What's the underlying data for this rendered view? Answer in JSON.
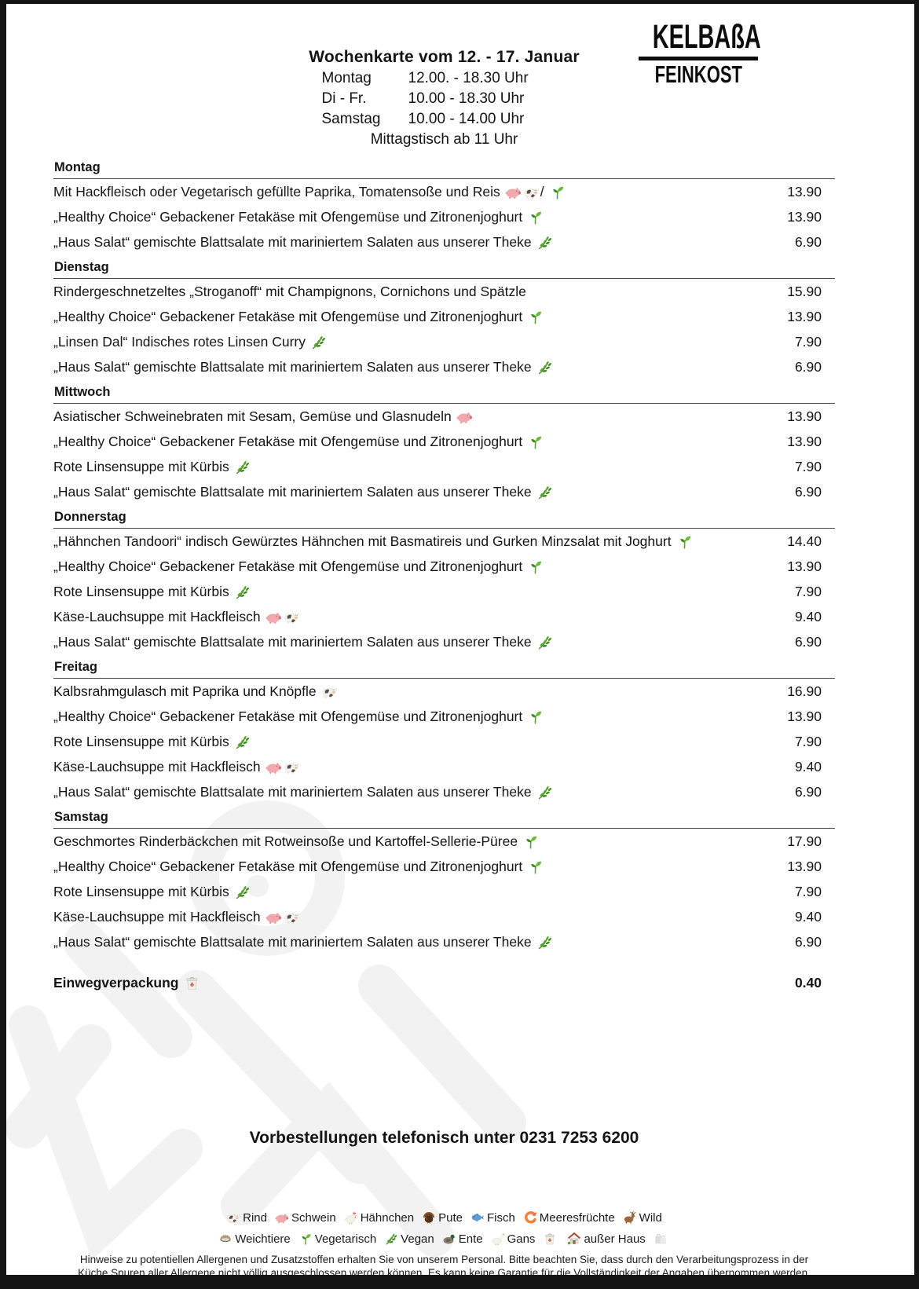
{
  "colors": {
    "page_bg": "#ffffff",
    "frame": "#151515",
    "day_rule": "#474747",
    "watermark": "#f2f2f2",
    "logo_ink": "#0d0d0d"
  },
  "page": {
    "header": {
      "title": "Wochenkarte vom  12. - 17. Januar",
      "hours": [
        {
          "label": "Montag",
          "time": "12.00. - 18.30 Uhr"
        },
        {
          "label": "Di - Fr.",
          "time": "10.00 - 18.30 Uhr"
        },
        {
          "label": "Samstag",
          "time": "10.00 - 14.00 Uhr"
        }
      ],
      "lunch_note": "Mittagstisch ab 11 Uhr",
      "logo": {
        "line1": "KELBAßA",
        "line2": "FEINKOST"
      }
    },
    "days": [
      {
        "name": "Montag",
        "items": [
          {
            "text": "Mit Hackfleisch oder Vegetarisch gefüllte Paprika, Tomatensoße und Reis",
            "icons": [
              "pig",
              "cow",
              "slash",
              "seedling"
            ],
            "price": "13.90"
          },
          {
            "text": "„Healthy Choice“  Gebackener Fetakäse mit Ofengemüse und Zitronenjoghurt",
            "icons": [
              "seedling"
            ],
            "price": "13.90"
          },
          {
            "text": "„Haus Salat“ gemischte Blattsalate mit mariniertem Salaten aus unserer Theke",
            "icons": [
              "herb"
            ],
            "price": "6.90"
          }
        ]
      },
      {
        "name": "Dienstag",
        "items": [
          {
            "text": "Rindergeschnetzeltes „Stroganoff“ mit Champignons, Cornichons und Spätzle",
            "icons": [],
            "price": "15.90"
          },
          {
            "text": "„Healthy Choice“  Gebackener Fetakäse mit Ofengemüse und Zitronenjoghurt",
            "icons": [
              "seedling"
            ],
            "price": "13.90"
          },
          {
            "text": "„Linsen Dal“ Indisches rotes Linsen Curry",
            "icons": [
              "herb"
            ],
            "price": "7.90"
          },
          {
            "text": "„Haus Salat“ gemischte Blattsalate mit mariniertem Salaten aus unserer Theke",
            "icons": [
              "herb"
            ],
            "price": "6.90"
          }
        ]
      },
      {
        "name": "Mittwoch",
        "items": [
          {
            "text": "Asiatischer Schweinebraten mit Sesam,  Gemüse und Glasnudeln",
            "icons": [
              "pig"
            ],
            "price": "13.90"
          },
          {
            "text": "„Healthy Choice“  Gebackener Fetakäse mit Ofengemüse und Zitronenjoghurt",
            "icons": [
              "seedling"
            ],
            "price": "13.90"
          },
          {
            "text": "Rote Linsensuppe mit Kürbis",
            "icons": [
              "herb"
            ],
            "price": "7.90"
          },
          {
            "text": "„Haus Salat“ gemischte Blattsalate mit mariniertem Salaten aus unserer Theke",
            "icons": [
              "herb"
            ],
            "price": "6.90"
          }
        ]
      },
      {
        "name": "Donnerstag",
        "items": [
          {
            "text": "„Hähnchen Tandoori“ indisch Gewürztes Hähnchen mit Basmatireis und Gurken Minzsalat mit Joghurt",
            "icons": [
              "seedling"
            ],
            "price": "14.40"
          },
          {
            "text": "„Healthy Choice“  Gebackener Fetakäse mit Ofengemüse und Zitronenjoghurt",
            "icons": [
              "seedling"
            ],
            "price": "13.90"
          },
          {
            "text": "Rote Linsensuppe mit Kürbis",
            "icons": [
              "herb"
            ],
            "price": "7.90"
          },
          {
            "text": "Käse-Lauchsuppe mit Hackfleisch",
            "icons": [
              "pig",
              "cow"
            ],
            "price": "9.40"
          },
          {
            "text": "„Haus Salat“ gemischte Blattsalate mit mariniertem Salaten aus unserer Theke",
            "icons": [
              "herb"
            ],
            "price": "6.90"
          }
        ]
      },
      {
        "name": "Freitag",
        "items": [
          {
            "text": "Kalbsrahmgulasch mit Paprika und Knöpfle",
            "icons": [
              "cow"
            ],
            "price": "16.90"
          },
          {
            "text": "„Healthy Choice“  Gebackener Fetakäse mit Ofengemüse und Zitronenjoghurt",
            "icons": [
              "seedling"
            ],
            "price": "13.90"
          },
          {
            "text": "Rote Linsensuppe mit Kürbis",
            "icons": [
              "herb"
            ],
            "price": "7.90"
          },
          {
            "text": "Käse-Lauchsuppe mit Hackfleisch",
            "icons": [
              "pig",
              "cow"
            ],
            "price": "9.40"
          },
          {
            "text": "„Haus Salat“ gemischte Blattsalate mit mariniertem Salaten aus unserer Theke",
            "icons": [
              "herb"
            ],
            "price": "6.90"
          }
        ]
      },
      {
        "name": "Samstag",
        "items": [
          {
            "text": "Geschmortes Rinderbäckchen mit Rotweinsoße und Kartoffel-Sellerie-Püree",
            "icons": [
              "seedling"
            ],
            "price": "17.90"
          },
          {
            "text": "„Healthy Choice“  Gebackener Fetakäse mit Ofengemüse und Zitronenjoghurt",
            "icons": [
              "seedling"
            ],
            "price": "13.90"
          },
          {
            "text": "Rote Linsensuppe mit Kürbis",
            "icons": [
              "herb"
            ],
            "price": "7.90"
          },
          {
            "text": "Käse-Lauchsuppe mit Hackfleisch",
            "icons": [
              "pig",
              "cow"
            ],
            "price": "9.40"
          },
          {
            "text": "„Haus Salat“ gemischte Blattsalate mit mariniertem Salaten aus unserer Theke",
            "icons": [
              "herb"
            ],
            "price": "6.90"
          }
        ]
      }
    ],
    "extra_item": {
      "text": "Einwegverpackung",
      "icons": [
        "takeout-box"
      ],
      "price": "0.40"
    },
    "phone_line": "Vorbestellungen telefonisch unter 0231 7253 6200",
    "legend": {
      "line1": [
        {
          "icons": [
            "cow"
          ],
          "label": "Rind"
        },
        {
          "icons": [
            "pig"
          ],
          "label": "Schwein"
        },
        {
          "icons": [
            "chicken"
          ],
          "label": "Hähnchen"
        },
        {
          "icons": [
            "turkey"
          ],
          "label": "Pute"
        },
        {
          "icons": [
            "fish"
          ],
          "label": "Fisch"
        },
        {
          "icons": [
            "shrimp"
          ],
          "label": "Meeresfrüchte"
        },
        {
          "icons": [
            "deer"
          ],
          "label": "Wild"
        }
      ],
      "line2": [
        {
          "icons": [
            "oyster"
          ],
          "label": "Weichtiere"
        },
        {
          "icons": [
            "seedling"
          ],
          "label": "Vegetarisch"
        },
        {
          "icons": [
            "herb"
          ],
          "label": "Vegan"
        },
        {
          "icons": [
            "duck"
          ],
          "label": "Ente"
        },
        {
          "icons": [
            "goose"
          ],
          "label": "Gans"
        },
        {
          "icons": [
            "takeout-box",
            "house"
          ],
          "label": "außer Haus"
        },
        {
          "icons": [
            "bags"
          ],
          "label": ""
        }
      ]
    },
    "allergy_note": "Hinweise zu potentiellen Allergenen und Zusatzstoffen erhalten Sie von unserem Personal. Bitte beachten Sie, dass durch den Verarbeitungsprozess in der Küche,Spuren aller Allergene nicht völlig ausgeschlossen werden können. Es kann keine Garantie für die Vollständigkeit der Angaben übernommen werden."
  }
}
